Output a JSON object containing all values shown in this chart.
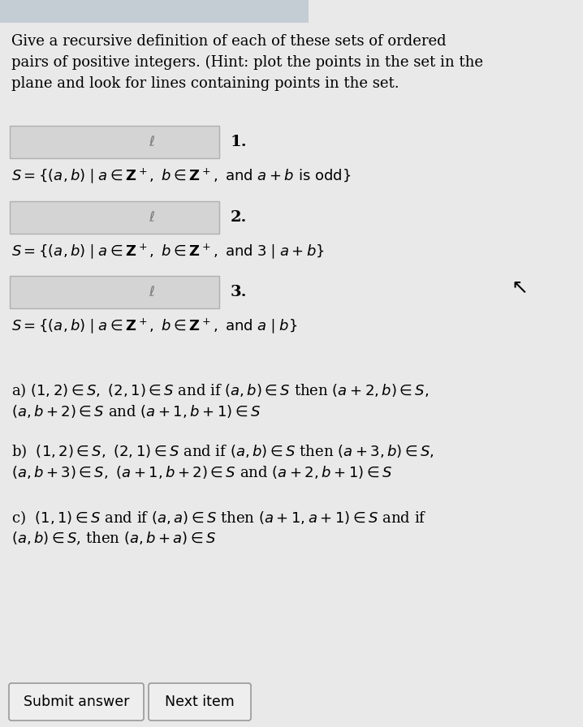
{
  "bg_color": "#e9e9e9",
  "top_bar_color": "#c5cdd4",
  "box_bg": "#d4d4d4",
  "box_edge": "#b0b0b0",
  "btn_bg": "#eeeeee",
  "btn_edge": "#999999",
  "title_lines": [
    "Give a recursive definition of each of these sets of ordered",
    "pairs of positive integers. (Hint: plot the points in the set in the",
    "plane and look for lines containing points in the set."
  ],
  "items": [
    {
      "number": "1.",
      "set_latex": "$S = \\{(a,b)\\mid a \\in \\mathbf{Z}^+,\\ b \\in \\mathbf{Z}^+,\\ \\mathrm{and}\\ a + b\\ \\mathrm{is\\ odd}\\}$"
    },
    {
      "number": "2.",
      "set_latex": "$S = \\{(a,b)\\mid a \\in \\mathbf{Z}^+,\\ b \\in \\mathbf{Z}^+,\\ \\mathrm{and}\\ 3\\mid a+b\\}$"
    },
    {
      "number": "3.",
      "set_latex": "$S = \\{(a,b)\\mid a \\in \\mathbf{Z}^+,\\ b \\in \\mathbf{Z}^+,\\ \\mathrm{and}\\ a\\mid b\\}$"
    }
  ],
  "answers": [
    {
      "label": "a)",
      "line1": "a) $(1,2) \\in S,\\ (2,1) \\in S$ and if $(a,b) \\in S$ then $(a+2,b) \\in S,$",
      "line2": "$(a,b+2) \\in S$ and $(a+1,b+1) \\in S$"
    },
    {
      "label": "b)",
      "line1": "b)  $(1,2) \\in S,\\ (2,1) \\in S$ and if $(a,b) \\in S$ then $(a+3,b) \\in S,$",
      "line2": "$(a,b+3) \\in S,\\ (a+1,b+2) \\in S$ and $(a+2,b+1) \\in S$"
    },
    {
      "label": "c)",
      "line1": "c)  $(1,1) \\in S$ and if $(a,a) \\in S$ then $(a+1,a+1) \\in S$ and if",
      "line2": "$(a,b) \\in S$, then $(a,b+a) \\in S$"
    }
  ],
  "button_labels": [
    "Submit answer",
    "Next item"
  ],
  "font_size_title": 13.0,
  "font_size_body": 13.0,
  "font_size_number": 14.0,
  "font_size_button": 12.5
}
